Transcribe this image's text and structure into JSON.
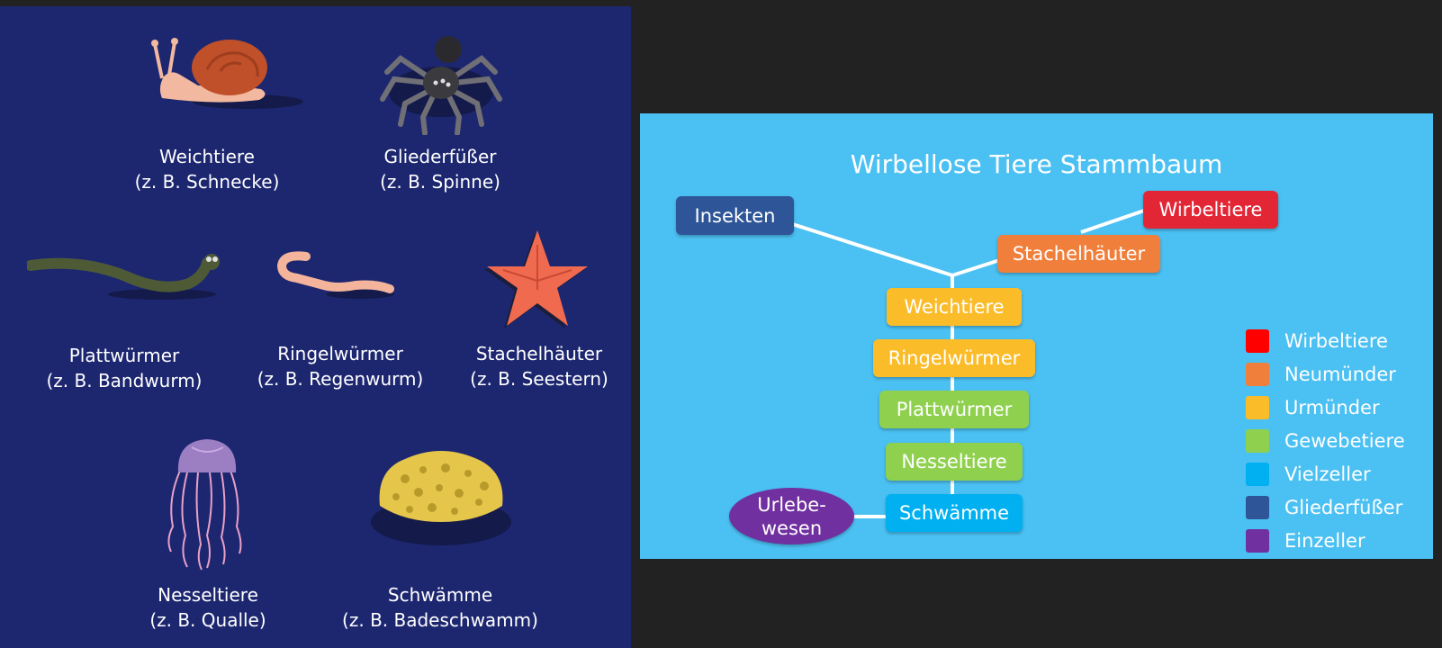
{
  "animals": [
    {
      "name": "Weichtiere",
      "example": "(z. B. Schnecke)"
    },
    {
      "name": "Gliederfüßer",
      "example": "(z. B. Spinne)"
    },
    {
      "name": "Plattwürmer",
      "example": "(z. B. Bandwurm)"
    },
    {
      "name": "Ringelwürmer",
      "example": "(z. B. Regenwurm)"
    },
    {
      "name": "Stachelhäuter",
      "example": "(z. B. Seestern)"
    },
    {
      "name": "Nesseltiere",
      "example": "(z. B. Qualle)"
    },
    {
      "name": "Schwämme",
      "example": "(z. B. Badeschwamm)"
    }
  ],
  "tree": {
    "title": "Wirbellose Tiere Stammbaum",
    "nodes": {
      "insekten": "Insekten",
      "wirbeltiere": "Wirbeltiere",
      "stachelhaeuter": "Stachelhäuter",
      "weichtiere": "Weichtiere",
      "ringelwuermer": "Ringelwürmer",
      "plattwuermer": "Plattwürmer",
      "nesseltiere": "Nesseltiere",
      "schwaemme": "Schwämme",
      "urlebewesen_line1": "Urlebe-",
      "urlebewesen_line2": "wesen"
    }
  },
  "legend": [
    {
      "label": "Wirbeltiere",
      "color": "#ff0000"
    },
    {
      "label": "Neumünder",
      "color": "#f07f3c"
    },
    {
      "label": "Urmünder",
      "color": "#fbbc2a"
    },
    {
      "label": "Gewebetiere",
      "color": "#8fd14f"
    },
    {
      "label": "Vielzeller",
      "color": "#00b0f0"
    },
    {
      "label": "Gliederfüßer",
      "color": "#2e5597"
    },
    {
      "label": "Einzeller",
      "color": "#7030a0"
    }
  ],
  "colors": {
    "left_background": "#1d2770",
    "right_background": "#4bc0f2",
    "insekten": "#2e5597",
    "wirbeltiere": "#e32636",
    "stachelhaeuter": "#f07f3c",
    "urmuender": "#fbbc2a",
    "gewebetiere": "#8fd14f",
    "schwaemme": "#00b0f0",
    "urlebewesen": "#7030a0"
  }
}
